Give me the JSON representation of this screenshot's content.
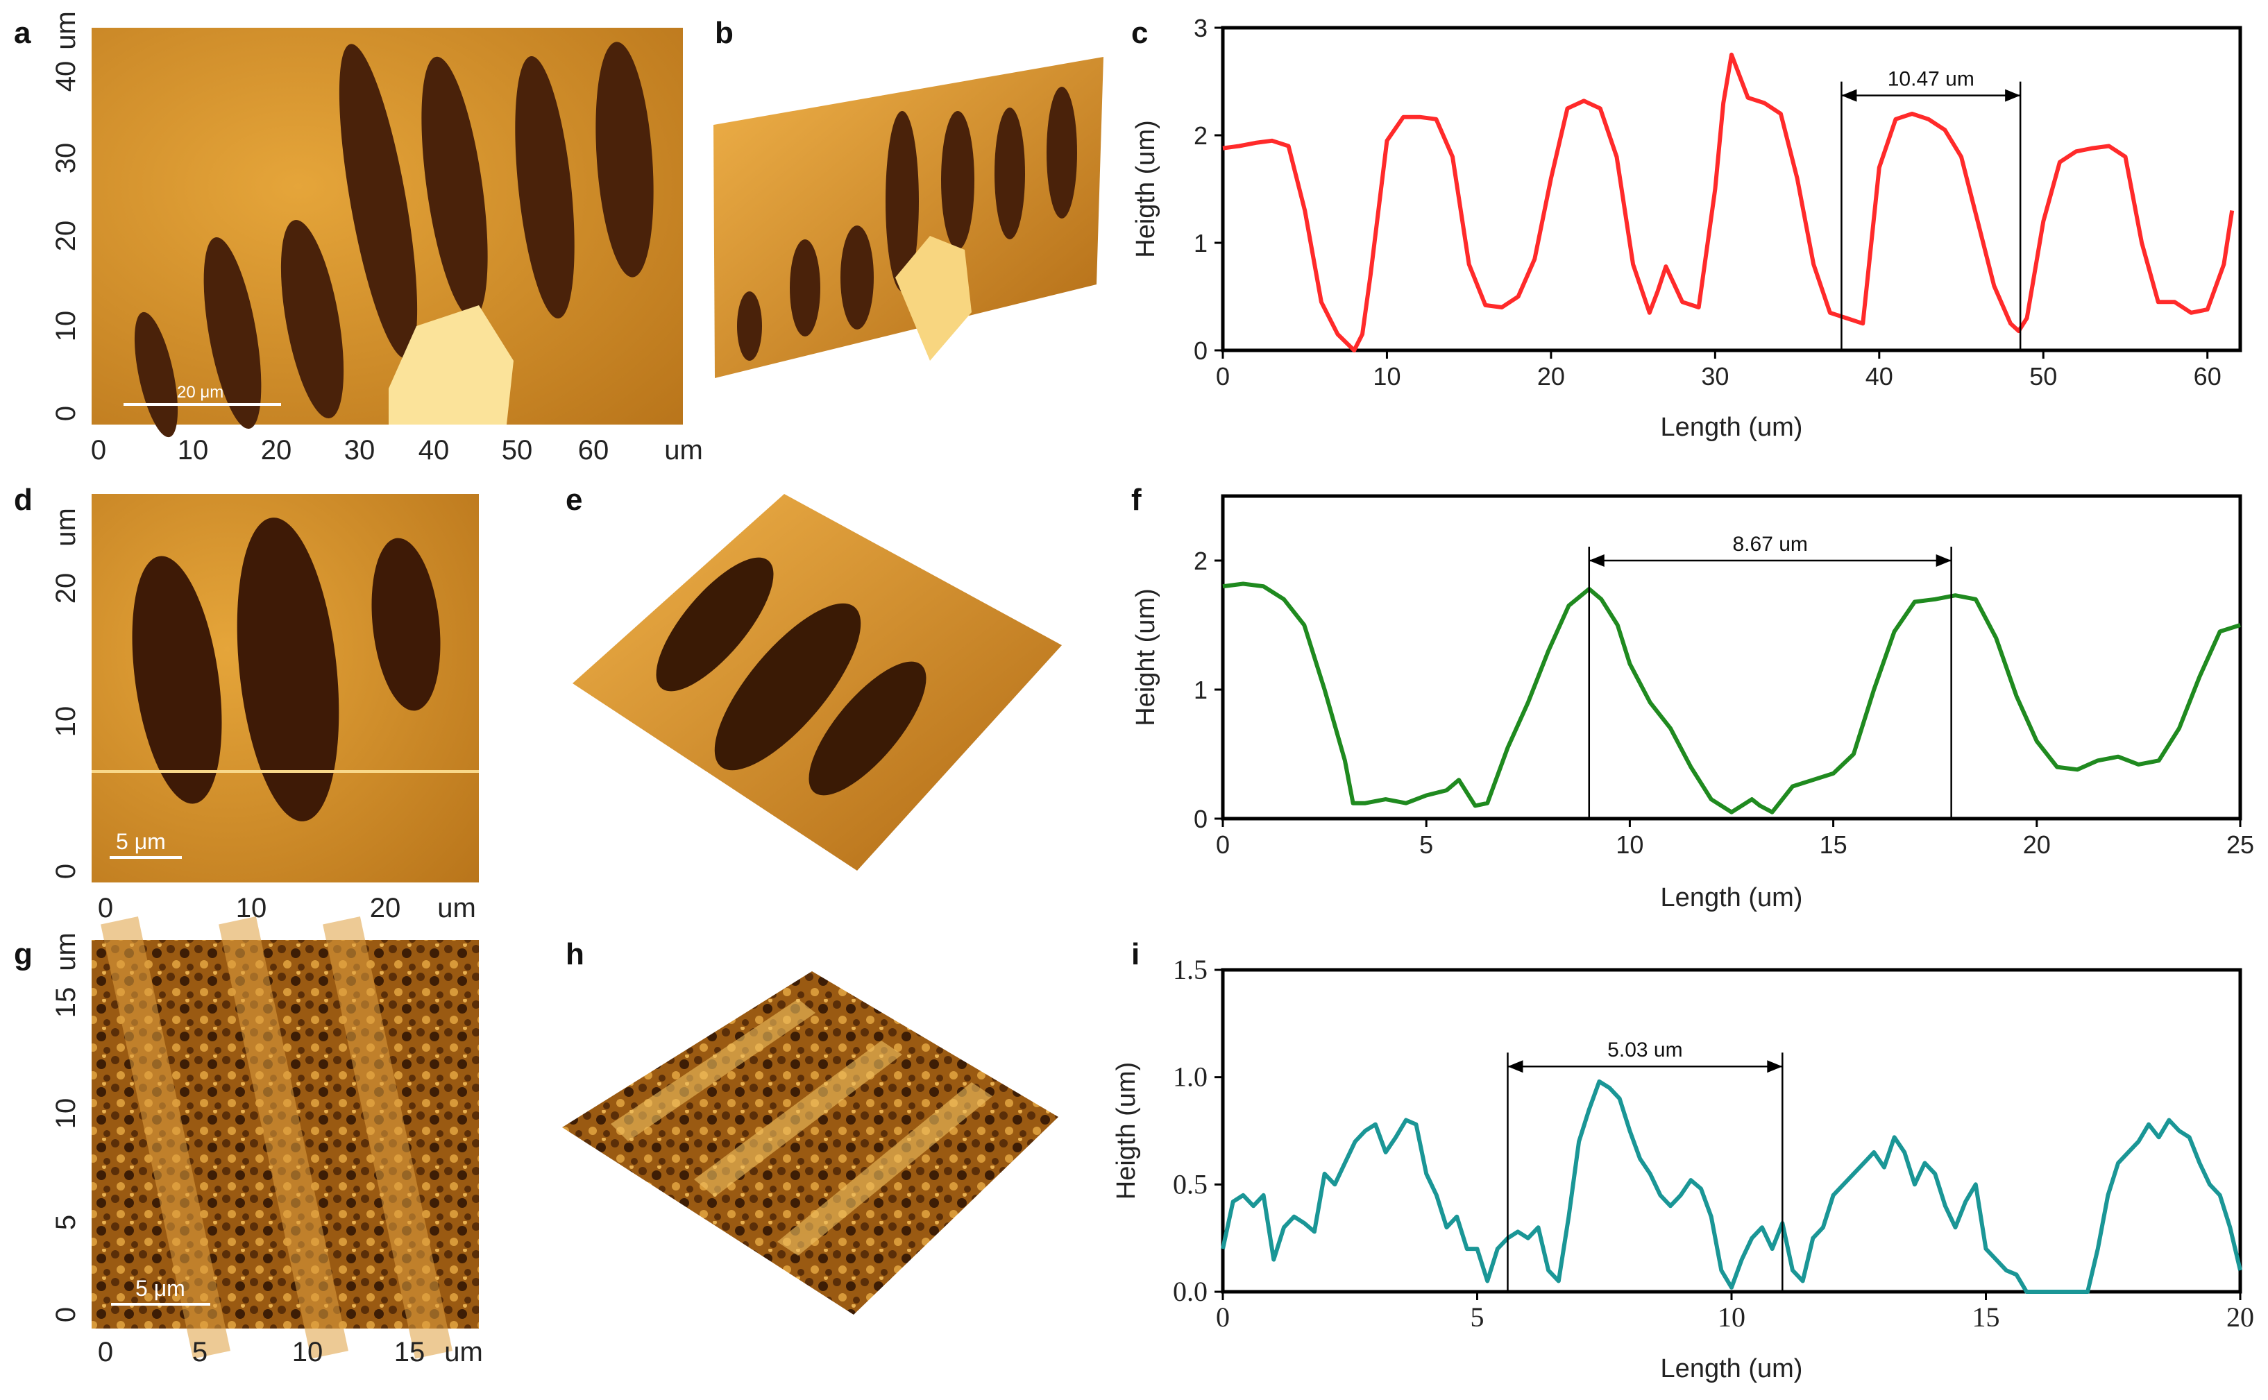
{
  "panels": {
    "a": {
      "letter": "a",
      "unit": "um",
      "x_ticks": [
        "0",
        "10",
        "20",
        "30",
        "40",
        "50",
        "60"
      ],
      "y_ticks": [
        "0",
        "10",
        "20",
        "30",
        "40"
      ],
      "scale_bar": "20 μm"
    },
    "b": {
      "letter": "b"
    },
    "d": {
      "letter": "d",
      "unit": "um",
      "x_ticks": [
        "0",
        "10",
        "20"
      ],
      "y_ticks": [
        "0",
        "10",
        "20"
      ],
      "scale_bar": "5 μm"
    },
    "e": {
      "letter": "e"
    },
    "g": {
      "letter": "g",
      "unit": "um",
      "x_ticks": [
        "0",
        "5",
        "10",
        "15"
      ],
      "y_ticks": [
        "0",
        "5",
        "10",
        "15"
      ],
      "scale_bar": "5 μm"
    },
    "h": {
      "letter": "h"
    }
  },
  "colors": {
    "afm_light": "#f2c35a",
    "afm_mid": "#c98518",
    "afm_dark": "#3a1a05",
    "series_c": "#ff2a2a",
    "series_f": "#1f8a1f",
    "series_i": "#1a9696"
  },
  "chart_data": [
    {
      "id": "c",
      "letter": "c",
      "type": "line",
      "xlabel": "Length (um)",
      "ylabel": "Heigth (um)",
      "xlim": [
        0,
        62
      ],
      "ylim": [
        0,
        3
      ],
      "xticks": [
        0,
        10,
        20,
        30,
        40,
        50,
        60
      ],
      "yticks": [
        0,
        1,
        2,
        3
      ],
      "annotation": {
        "label": "10.47 um",
        "x1": 37.7,
        "x2": 48.6,
        "y": 2.37
      },
      "series": [
        {
          "name": "profile",
          "color": "#ff2a2a",
          "x": [
            0,
            1,
            2,
            3,
            4,
            5,
            6,
            7,
            8,
            8.5,
            9,
            10,
            11,
            12,
            13,
            14,
            15,
            16,
            17,
            18,
            19,
            20,
            21,
            22,
            23,
            24,
            25,
            26,
            26.5,
            27,
            28,
            29,
            30,
            30.5,
            31,
            32,
            33,
            34,
            35,
            36,
            37,
            38,
            39,
            40,
            41,
            42,
            43,
            44,
            45,
            46,
            47,
            48,
            48.5,
            49,
            50,
            51,
            52,
            53,
            54,
            55,
            56,
            57,
            58,
            59,
            60,
            61,
            61.5
          ],
          "y": [
            1.88,
            1.9,
            1.93,
            1.95,
            1.9,
            1.3,
            0.45,
            0.15,
            0.0,
            0.15,
            0.7,
            1.95,
            2.17,
            2.17,
            2.15,
            1.8,
            0.8,
            0.42,
            0.4,
            0.5,
            0.85,
            1.6,
            2.25,
            2.32,
            2.25,
            1.8,
            0.8,
            0.35,
            0.55,
            0.78,
            0.45,
            0.4,
            1.5,
            2.3,
            2.75,
            2.35,
            2.3,
            2.2,
            1.6,
            0.8,
            0.35,
            0.3,
            0.25,
            1.7,
            2.15,
            2.2,
            2.15,
            2.05,
            1.8,
            1.2,
            0.6,
            0.25,
            0.18,
            0.3,
            1.2,
            1.75,
            1.85,
            1.88,
            1.9,
            1.8,
            1.0,
            0.45,
            0.45,
            0.35,
            0.38,
            0.8,
            1.3
          ]
        }
      ]
    },
    {
      "id": "f",
      "letter": "f",
      "type": "line",
      "xlabel": "Length (um)",
      "ylabel": "Height (um)",
      "xlim": [
        0,
        25
      ],
      "ylim": [
        0,
        2.5
      ],
      "xticks": [
        0,
        5,
        10,
        15,
        20,
        25
      ],
      "yticks": [
        0,
        1,
        2
      ],
      "annotation": {
        "label": "8.67 um",
        "x1": 9.0,
        "x2": 17.9,
        "y": 2.0
      },
      "series": [
        {
          "name": "profile",
          "color": "#1f8a1f",
          "x": [
            0,
            0.5,
            1,
            1.5,
            2,
            2.5,
            3,
            3.2,
            3.5,
            4,
            4.5,
            5,
            5.5,
            5.8,
            6.2,
            6.5,
            7,
            7.5,
            8,
            8.5,
            9,
            9.3,
            9.7,
            10,
            10.5,
            11,
            11.5,
            12,
            12.5,
            13,
            13.2,
            13.5,
            14,
            14.5,
            15,
            15.5,
            16,
            16.5,
            17,
            17.5,
            18,
            18.5,
            19,
            19.5,
            20,
            20.5,
            21,
            21.5,
            22,
            22.5,
            23,
            23.5,
            24,
            24.5,
            25
          ],
          "y": [
            1.8,
            1.82,
            1.8,
            1.7,
            1.5,
            1.0,
            0.45,
            0.12,
            0.12,
            0.15,
            0.12,
            0.18,
            0.22,
            0.3,
            0.1,
            0.12,
            0.55,
            0.9,
            1.3,
            1.65,
            1.78,
            1.7,
            1.5,
            1.2,
            0.9,
            0.7,
            0.4,
            0.15,
            0.05,
            0.15,
            0.1,
            0.05,
            0.25,
            0.3,
            0.35,
            0.5,
            1.0,
            1.45,
            1.68,
            1.7,
            1.73,
            1.7,
            1.4,
            0.95,
            0.6,
            0.4,
            0.38,
            0.45,
            0.48,
            0.42,
            0.45,
            0.7,
            1.1,
            1.45,
            1.5
          ]
        }
      ]
    },
    {
      "id": "i",
      "letter": "i",
      "type": "line",
      "xlabel": "Length (um)",
      "ylabel": "Heigth (um)",
      "xlim": [
        0,
        20
      ],
      "ylim": [
        0,
        1.5
      ],
      "xticks": [
        0,
        5,
        10,
        15,
        20
      ],
      "yticks": [
        0.0,
        0.5,
        1.0,
        1.5
      ],
      "ytick_labels": [
        "0.0",
        "0.5",
        "1.0",
        "1.5"
      ],
      "annotation": {
        "label": "5.03 um",
        "x1": 5.6,
        "x2": 11.0,
        "y": 1.05
      },
      "series": [
        {
          "name": "profile",
          "color": "#1a9696",
          "x": [
            0,
            0.2,
            0.4,
            0.6,
            0.8,
            1.0,
            1.2,
            1.4,
            1.6,
            1.8,
            2.0,
            2.2,
            2.4,
            2.6,
            2.8,
            3.0,
            3.2,
            3.4,
            3.6,
            3.8,
            4.0,
            4.2,
            4.4,
            4.6,
            4.8,
            5.0,
            5.2,
            5.4,
            5.6,
            5.8,
            6.0,
            6.2,
            6.4,
            6.6,
            6.8,
            7.0,
            7.2,
            7.4,
            7.6,
            7.8,
            8.0,
            8.2,
            8.4,
            8.6,
            8.8,
            9.0,
            9.2,
            9.4,
            9.6,
            9.8,
            10.0,
            10.2,
            10.4,
            10.6,
            10.8,
            11.0,
            11.2,
            11.4,
            11.6,
            11.8,
            12.0,
            12.2,
            12.4,
            12.6,
            12.8,
            13.0,
            13.2,
            13.4,
            13.6,
            13.8,
            14.0,
            14.2,
            14.4,
            14.6,
            14.8,
            15.0,
            15.2,
            15.4,
            15.6,
            15.8,
            16.0,
            16.5,
            17.0,
            17.2,
            17.4,
            17.6,
            17.8,
            18.0,
            18.2,
            18.4,
            18.6,
            18.8,
            19.0,
            19.2,
            19.4,
            19.6,
            19.8,
            20.0
          ],
          "y": [
            0.2,
            0.42,
            0.45,
            0.4,
            0.45,
            0.15,
            0.3,
            0.35,
            0.32,
            0.28,
            0.55,
            0.5,
            0.6,
            0.7,
            0.75,
            0.78,
            0.65,
            0.72,
            0.8,
            0.78,
            0.55,
            0.45,
            0.3,
            0.35,
            0.2,
            0.2,
            0.05,
            0.2,
            0.25,
            0.28,
            0.25,
            0.3,
            0.1,
            0.05,
            0.35,
            0.7,
            0.85,
            0.98,
            0.95,
            0.9,
            0.75,
            0.62,
            0.55,
            0.45,
            0.4,
            0.45,
            0.52,
            0.48,
            0.35,
            0.1,
            0.02,
            0.15,
            0.25,
            0.3,
            0.2,
            0.32,
            0.1,
            0.05,
            0.25,
            0.3,
            0.45,
            0.5,
            0.55,
            0.6,
            0.65,
            0.58,
            0.72,
            0.65,
            0.5,
            0.6,
            0.55,
            0.4,
            0.3,
            0.42,
            0.5,
            0.2,
            0.15,
            0.1,
            0.08,
            0.0,
            0.0,
            0.0,
            0.0,
            0.2,
            0.45,
            0.6,
            0.65,
            0.7,
            0.78,
            0.72,
            0.8,
            0.75,
            0.72,
            0.6,
            0.5,
            0.45,
            0.3,
            0.1
          ]
        }
      ]
    }
  ]
}
